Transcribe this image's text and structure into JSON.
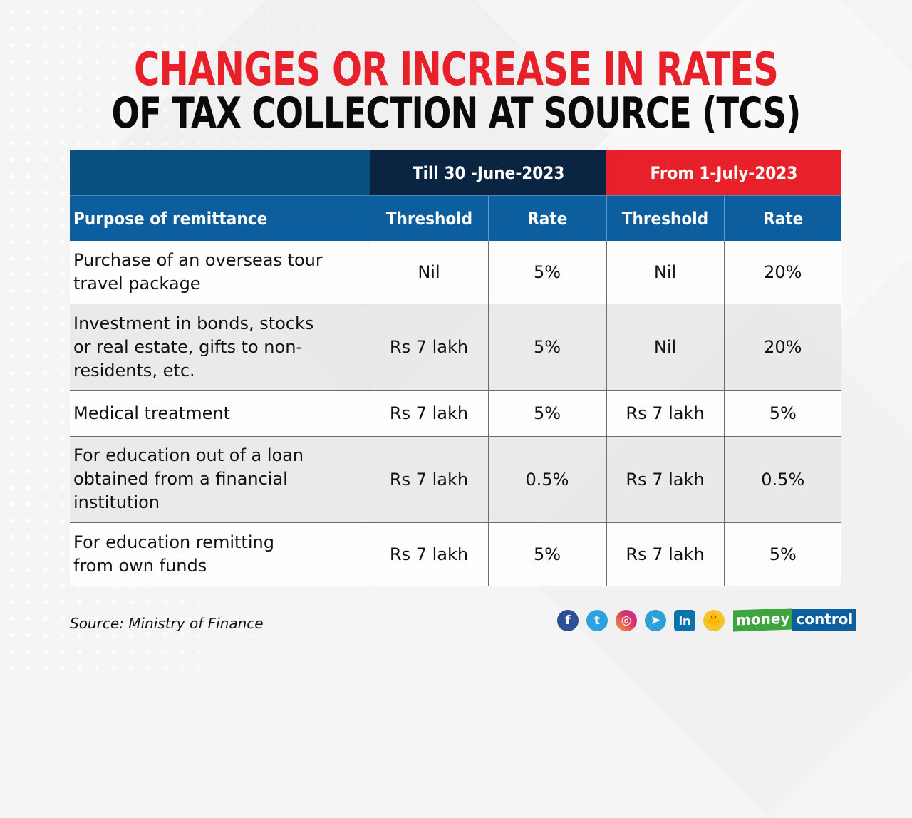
{
  "title": {
    "line1": "CHANGES OR INCREASE IN RATES",
    "line2": "OF TAX COLLECTION AT SOURCE (TCS)"
  },
  "colors": {
    "accent_red": "#e8202a",
    "header_blue": "#0c5e9e",
    "header_navy": "#0a2541"
  },
  "table": {
    "group_headers": {
      "till": "Till 30 -June-2023",
      "from": "From 1-July-2023"
    },
    "column_headers": {
      "purpose": "Purpose of remittance",
      "threshold_old": "Threshold",
      "rate_old": "Rate",
      "threshold_new": "Threshold",
      "rate_new": "Rate"
    },
    "rows": [
      {
        "purpose": "Purchase of an overseas tour travel package",
        "threshold_old": "Nil",
        "rate_old": "5%",
        "threshold_new": "Nil",
        "rate_new": "20%"
      },
      {
        "purpose": "Investment in bonds, stocks or real estate, gifts to non-residents, etc.",
        "threshold_old": "Rs 7 lakh",
        "rate_old": "5%",
        "threshold_new": "Nil",
        "rate_new": "20%"
      },
      {
        "purpose": "Medical treatment",
        "threshold_old": "Rs 7 lakh",
        "rate_old": "5%",
        "threshold_new": "Rs 7 lakh",
        "rate_new": "5%"
      },
      {
        "purpose": "For education out of a loan obtained from a financial institution",
        "threshold_old": "Rs 7 lakh",
        "rate_old": "0.5%",
        "threshold_new": "Rs 7 lakh",
        "rate_new": "0.5%"
      },
      {
        "purpose": "For education remitting from own funds",
        "threshold_old": "Rs 7 lakh",
        "rate_old": "5%",
        "threshold_new": "Rs 7 lakh",
        "rate_new": "5%"
      }
    ]
  },
  "footer": {
    "source": "Source: Ministry of Finance",
    "social_icons": [
      "facebook-icon",
      "twitter-icon",
      "instagram-icon",
      "telegram-icon",
      "linkedin-icon",
      "koo-icon"
    ],
    "social_glyphs": {
      "facebook": "f",
      "twitter": "t",
      "instagram": "◎",
      "telegram": "➤",
      "linkedin": "in",
      "koo": "🐥"
    },
    "brand_part1": "money",
    "brand_part2": "control"
  }
}
